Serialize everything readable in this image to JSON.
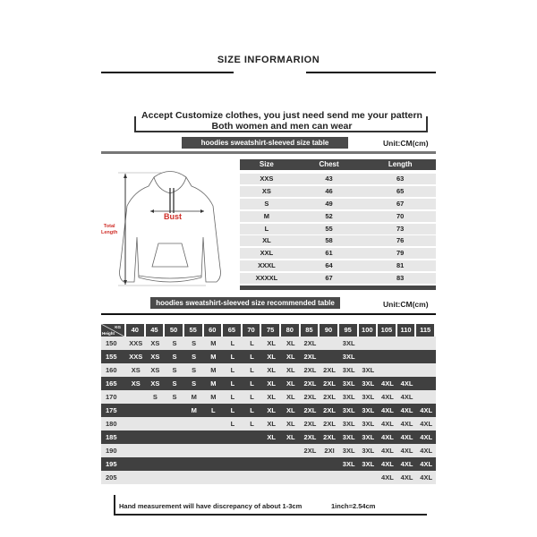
{
  "title": "SIZE INFORMARION",
  "notice": {
    "line1": "Accept Customize clothes, you just need send me your pattern",
    "line2": "Both women and men can wear"
  },
  "size_table": {
    "label": "hoodies sweatshirt-sleeved size  table",
    "unit": "Unit:CM(cm)",
    "headers": [
      "Size",
      "Chest",
      "Length"
    ],
    "rows": [
      [
        "XXS",
        "43",
        "63"
      ],
      [
        "XS",
        "46",
        "65"
      ],
      [
        "S",
        "49",
        "67"
      ],
      [
        "M",
        "52",
        "70"
      ],
      [
        "L",
        "55",
        "73"
      ],
      [
        "XL",
        "58",
        "76"
      ],
      [
        "XXL",
        "61",
        "79"
      ],
      [
        "XXXL",
        "64",
        "81"
      ],
      [
        "XXXXL",
        "67",
        "83"
      ]
    ]
  },
  "diagram": {
    "bust_label": "Bust",
    "length_label_1": "Total",
    "length_label_2": "Length",
    "accent": "#d0302a"
  },
  "recommend_table": {
    "label": "hoodies sweatshirt-sleeved size recommended table",
    "unit": "Unit:CM(cm)",
    "corner_kg": "KG",
    "corner_height": "Height",
    "weights": [
      "40",
      "45",
      "50",
      "55",
      "60",
      "65",
      "70",
      "75",
      "80",
      "85",
      "90",
      "95",
      "100",
      "105",
      "110",
      "115"
    ],
    "rows": [
      {
        "height": "150",
        "sizes": [
          "XXS",
          "XS",
          "S",
          "S",
          "M",
          "L",
          "L",
          "XL",
          "XL",
          "2XL",
          "",
          "3XL",
          "",
          "",
          "",
          ""
        ]
      },
      {
        "height": "155",
        "sizes": [
          "XXS",
          "XS",
          "S",
          "S",
          "M",
          "L",
          "L",
          "XL",
          "XL",
          "2XL",
          "",
          "3XL",
          "",
          "",
          "",
          ""
        ]
      },
      {
        "height": "160",
        "sizes": [
          "XS",
          "XS",
          "S",
          "S",
          "M",
          "L",
          "L",
          "XL",
          "XL",
          "2XL",
          "2XL",
          "3XL",
          "3XL",
          "",
          "",
          ""
        ]
      },
      {
        "height": "165",
        "sizes": [
          "XS",
          "XS",
          "S",
          "S",
          "M",
          "L",
          "L",
          "XL",
          "XL",
          "2XL",
          "2XL",
          "3XL",
          "3XL",
          "4XL",
          "4XL",
          ""
        ]
      },
      {
        "height": "170",
        "sizes": [
          "",
          "S",
          "S",
          "M",
          "M",
          "L",
          "L",
          "XL",
          "XL",
          "2XL",
          "2XL",
          "3XL",
          "3XL",
          "4XL",
          "4XL",
          ""
        ]
      },
      {
        "height": "175",
        "sizes": [
          "",
          "",
          "",
          "M",
          "L",
          "L",
          "L",
          "XL",
          "XL",
          "2XL",
          "2XL",
          "3XL",
          "3XL",
          "4XL",
          "4XL",
          "4XL"
        ]
      },
      {
        "height": "180",
        "sizes": [
          "",
          "",
          "",
          "",
          "",
          "L",
          "L",
          "XL",
          "XL",
          "2XL",
          "2XL",
          "3XL",
          "3XL",
          "4XL",
          "4XL",
          "4XL"
        ]
      },
      {
        "height": "185",
        "sizes": [
          "",
          "",
          "",
          "",
          "",
          "",
          "",
          "XL",
          "XL",
          "2XL",
          "2XL",
          "3XL",
          "3XL",
          "4XL",
          "4XL",
          "4XL"
        ]
      },
      {
        "height": "190",
        "sizes": [
          "",
          "",
          "",
          "",
          "",
          "",
          "",
          "",
          "",
          "2XL",
          "2XI",
          "3XL",
          "3XL",
          "4XL",
          "4XL",
          "4XL"
        ]
      },
      {
        "height": "195",
        "sizes": [
          "",
          "",
          "",
          "",
          "",
          "",
          "",
          "",
          "",
          "",
          "",
          "3XL",
          "3XL",
          "4XL",
          "4XL",
          "4XL"
        ]
      },
      {
        "height": "205",
        "sizes": [
          "",
          "",
          "",
          "",
          "",
          "",
          "",
          "",
          "",
          "",
          "",
          "",
          "",
          "4XL",
          "4XL",
          "4XL"
        ]
      }
    ]
  },
  "footer": {
    "note": "Hand measurement will have discrepancy of about  1-3cm",
    "conversion": "1inch=2.54cm"
  }
}
